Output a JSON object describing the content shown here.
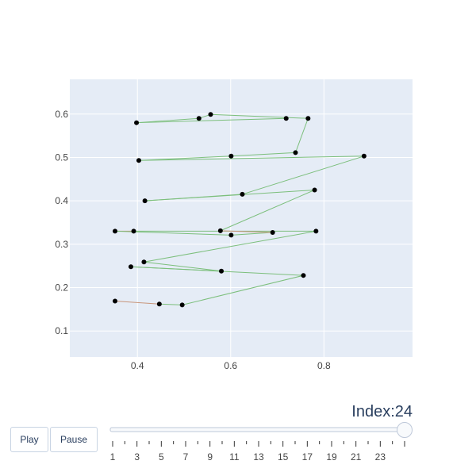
{
  "chart_data": {
    "type": "line",
    "xlim": [
      0.255,
      0.99
    ],
    "ylim": [
      0.04,
      0.68
    ],
    "x_ticks": [
      0.4,
      0.6,
      0.8
    ],
    "x_tick_labels": [
      "0.4",
      "0.6",
      "0.8"
    ],
    "y_ticks": [
      0.1,
      0.2,
      0.3,
      0.4,
      0.5,
      0.6
    ],
    "y_tick_labels": [
      "0.1",
      "0.2",
      "0.3",
      "0.4",
      "0.5",
      "0.6"
    ],
    "grid": true,
    "background": "#e5ecf6",
    "path_color": "#7cbf7c",
    "highlight_color": "#c8957a",
    "point_color": "#000000",
    "points": [
      {
        "x": 0.352,
        "y": 0.169
      },
      {
        "x": 0.447,
        "y": 0.162
      },
      {
        "x": 0.496,
        "y": 0.16
      },
      {
        "x": 0.756,
        "y": 0.228
      },
      {
        "x": 0.386,
        "y": 0.248
      },
      {
        "x": 0.58,
        "y": 0.238
      },
      {
        "x": 0.414,
        "y": 0.259
      },
      {
        "x": 0.783,
        "y": 0.33
      },
      {
        "x": 0.392,
        "y": 0.33
      },
      {
        "x": 0.352,
        "y": 0.33
      },
      {
        "x": 0.601,
        "y": 0.321
      },
      {
        "x": 0.69,
        "y": 0.327
      },
      {
        "x": 0.578,
        "y": 0.331
      },
      {
        "x": 0.78,
        "y": 0.425
      },
      {
        "x": 0.416,
        "y": 0.4
      },
      {
        "x": 0.625,
        "y": 0.415
      },
      {
        "x": 0.886,
        "y": 0.503
      },
      {
        "x": 0.403,
        "y": 0.493
      },
      {
        "x": 0.601,
        "y": 0.503
      },
      {
        "x": 0.739,
        "y": 0.511
      },
      {
        "x": 0.766,
        "y": 0.59
      },
      {
        "x": 0.557,
        "y": 0.599
      },
      {
        "x": 0.532,
        "y": 0.59
      },
      {
        "x": 0.398,
        "y": 0.58
      },
      {
        "x": 0.719,
        "y": 0.59
      }
    ],
    "highlight_segments": [
      [
        0,
        1
      ],
      [
        9,
        8
      ],
      [
        11,
        12
      ]
    ]
  },
  "controls": {
    "play_label": "Play",
    "pause_label": "Pause"
  },
  "slider": {
    "label": "Index:24",
    "min": 0,
    "max": 24,
    "value": 24,
    "tick_labels": [
      "1",
      "3",
      "5",
      "7",
      "9",
      "11",
      "13",
      "15",
      "17",
      "19",
      "21",
      "23"
    ]
  }
}
